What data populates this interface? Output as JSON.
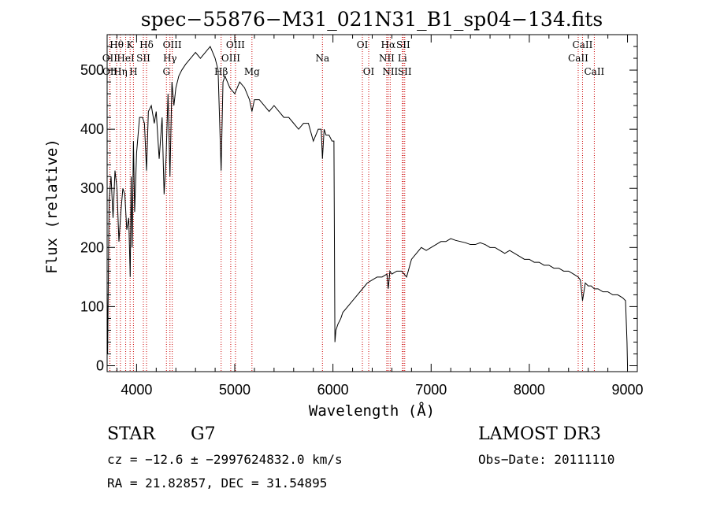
{
  "chart_data": {
    "type": "line",
    "title": "spec−55876−M31_021N31_B1_sp04−134.fits",
    "xlabel": "Wavelength (Å)",
    "ylabel": "Flux (relative)",
    "xlim": [
      3700,
      9100
    ],
    "ylim": [
      -10,
      560
    ],
    "x_ticks": [
      4000,
      5000,
      6000,
      7000,
      8000,
      9000
    ],
    "y_ticks": [
      0,
      100,
      200,
      300,
      400,
      500
    ],
    "grid": false,
    "colors": {
      "spectrum": "#000000",
      "lines": "#cc0000"
    },
    "series": [
      {
        "x": [
          3700,
          3705,
          3720,
          3740,
          3760,
          3780,
          3800,
          3820,
          3840,
          3860,
          3880,
          3900,
          3920,
          3935,
          3945,
          3955,
          3968,
          3980,
          4000,
          4030,
          4060,
          4080,
          4101,
          4120,
          4150,
          4180,
          4200,
          4230,
          4260,
          4280,
          4300,
          4320,
          4340,
          4360,
          4380,
          4400,
          4430,
          4460,
          4500,
          4550,
          4600,
          4650,
          4700,
          4750,
          4800,
          4830,
          4861,
          4880,
          4900,
          4950,
          5000,
          5050,
          5100,
          5150,
          5175,
          5200,
          5250,
          5300,
          5350,
          5400,
          5450,
          5500,
          5550,
          5600,
          5650,
          5700,
          5750,
          5800,
          5850,
          5880,
          5893,
          5910,
          5930,
          5960,
          5990,
          6010,
          6020,
          6030,
          6050,
          6080,
          6100,
          6150,
          6200,
          6250,
          6300,
          6350,
          6400,
          6450,
          6500,
          6550,
          6563,
          6580,
          6600,
          6650,
          6700,
          6750,
          6800,
          6850,
          6900,
          6950,
          7000,
          7050,
          7100,
          7150,
          7200,
          7250,
          7300,
          7350,
          7400,
          7450,
          7500,
          7550,
          7600,
          7650,
          7700,
          7750,
          7800,
          7850,
          7900,
          7950,
          8000,
          8050,
          8100,
          8150,
          8200,
          8250,
          8300,
          8350,
          8400,
          8450,
          8498,
          8520,
          8542,
          8570,
          8600,
          8630,
          8662,
          8700,
          8750,
          8800,
          8850,
          8900,
          8950,
          8980,
          8995,
          9000
        ],
        "y": [
          120,
          20,
          280,
          320,
          250,
          330,
          300,
          210,
          260,
          300,
          290,
          230,
          250,
          150,
          320,
          200,
          380,
          260,
          360,
          420,
          420,
          410,
          330,
          430,
          440,
          410,
          430,
          350,
          420,
          290,
          350,
          460,
          320,
          480,
          440,
          470,
          490,
          500,
          510,
          520,
          530,
          520,
          530,
          540,
          520,
          500,
          330,
          480,
          490,
          470,
          460,
          480,
          470,
          450,
          430,
          450,
          450,
          440,
          430,
          440,
          430,
          420,
          420,
          410,
          400,
          410,
          410,
          380,
          400,
          400,
          350,
          400,
          390,
          390,
          380,
          380,
          40,
          60,
          70,
          80,
          90,
          100,
          110,
          120,
          130,
          140,
          145,
          150,
          150,
          155,
          130,
          160,
          155,
          160,
          160,
          150,
          180,
          190,
          200,
          195,
          200,
          205,
          210,
          210,
          215,
          212,
          210,
          208,
          205,
          205,
          208,
          205,
          200,
          200,
          195,
          190,
          195,
          190,
          185,
          180,
          180,
          175,
          175,
          170,
          170,
          165,
          165,
          160,
          160,
          155,
          150,
          145,
          110,
          140,
          135,
          135,
          130,
          130,
          125,
          125,
          120,
          120,
          115,
          110,
          40,
          0
        ]
      }
    ],
    "line_markers": [
      {
        "name": "Hθ",
        "x": 3797,
        "row": 0
      },
      {
        "name": "Hη",
        "x": 3835,
        "row": 2
      },
      {
        "name": "OII",
        "x": 3727,
        "row": 1
      },
      {
        "name": "OII",
        "x": 3729,
        "row": 2
      },
      {
        "name": "HeI",
        "x": 3889,
        "row": 1
      },
      {
        "name": "K",
        "x": 3934,
        "row": 0
      },
      {
        "name": "H",
        "x": 3968,
        "row": 2
      },
      {
        "name": "SII",
        "x": 4069,
        "row": 1
      },
      {
        "name": "Hδ",
        "x": 4101,
        "row": 0
      },
      {
        "name": "OIII",
        "x": 4363,
        "row": 0
      },
      {
        "name": "Hγ",
        "x": 4340,
        "row": 1
      },
      {
        "name": "G",
        "x": 4304,
        "row": 2
      },
      {
        "name": "Hβ",
        "x": 4861,
        "row": 2
      },
      {
        "name": "OIII",
        "x": 4959,
        "row": 1
      },
      {
        "name": "OIII",
        "x": 5007,
        "row": 0
      },
      {
        "name": "Mg",
        "x": 5175,
        "row": 2
      },
      {
        "name": "Na",
        "x": 5893,
        "row": 1
      },
      {
        "name": "OI",
        "x": 6300,
        "row": 0
      },
      {
        "name": "OI",
        "x": 6364,
        "row": 2
      },
      {
        "name": "NII",
        "x": 6548,
        "row": 1
      },
      {
        "name": "Hα",
        "x": 6563,
        "row": 0
      },
      {
        "name": "NII",
        "x": 6583,
        "row": 2
      },
      {
        "name": "SII",
        "x": 6716,
        "row": 0
      },
      {
        "name": "Li",
        "x": 6707,
        "row": 1
      },
      {
        "name": "SII",
        "x": 6731,
        "row": 2
      },
      {
        "name": "CaII",
        "x": 8498,
        "row": 1
      },
      {
        "name": "CaII",
        "x": 8542,
        "row": 0
      },
      {
        "name": "CaII",
        "x": 8662,
        "row": 2
      }
    ]
  },
  "info": {
    "object_class": "STAR",
    "subclass": "G7",
    "survey": "LAMOST DR3",
    "cz_line": "cz = −12.6 ± −2997624832.0 km/s",
    "obs_date_line": "Obs−Date: 20111110",
    "radec_line": "RA =  21.82857, DEC =  31.54895"
  }
}
